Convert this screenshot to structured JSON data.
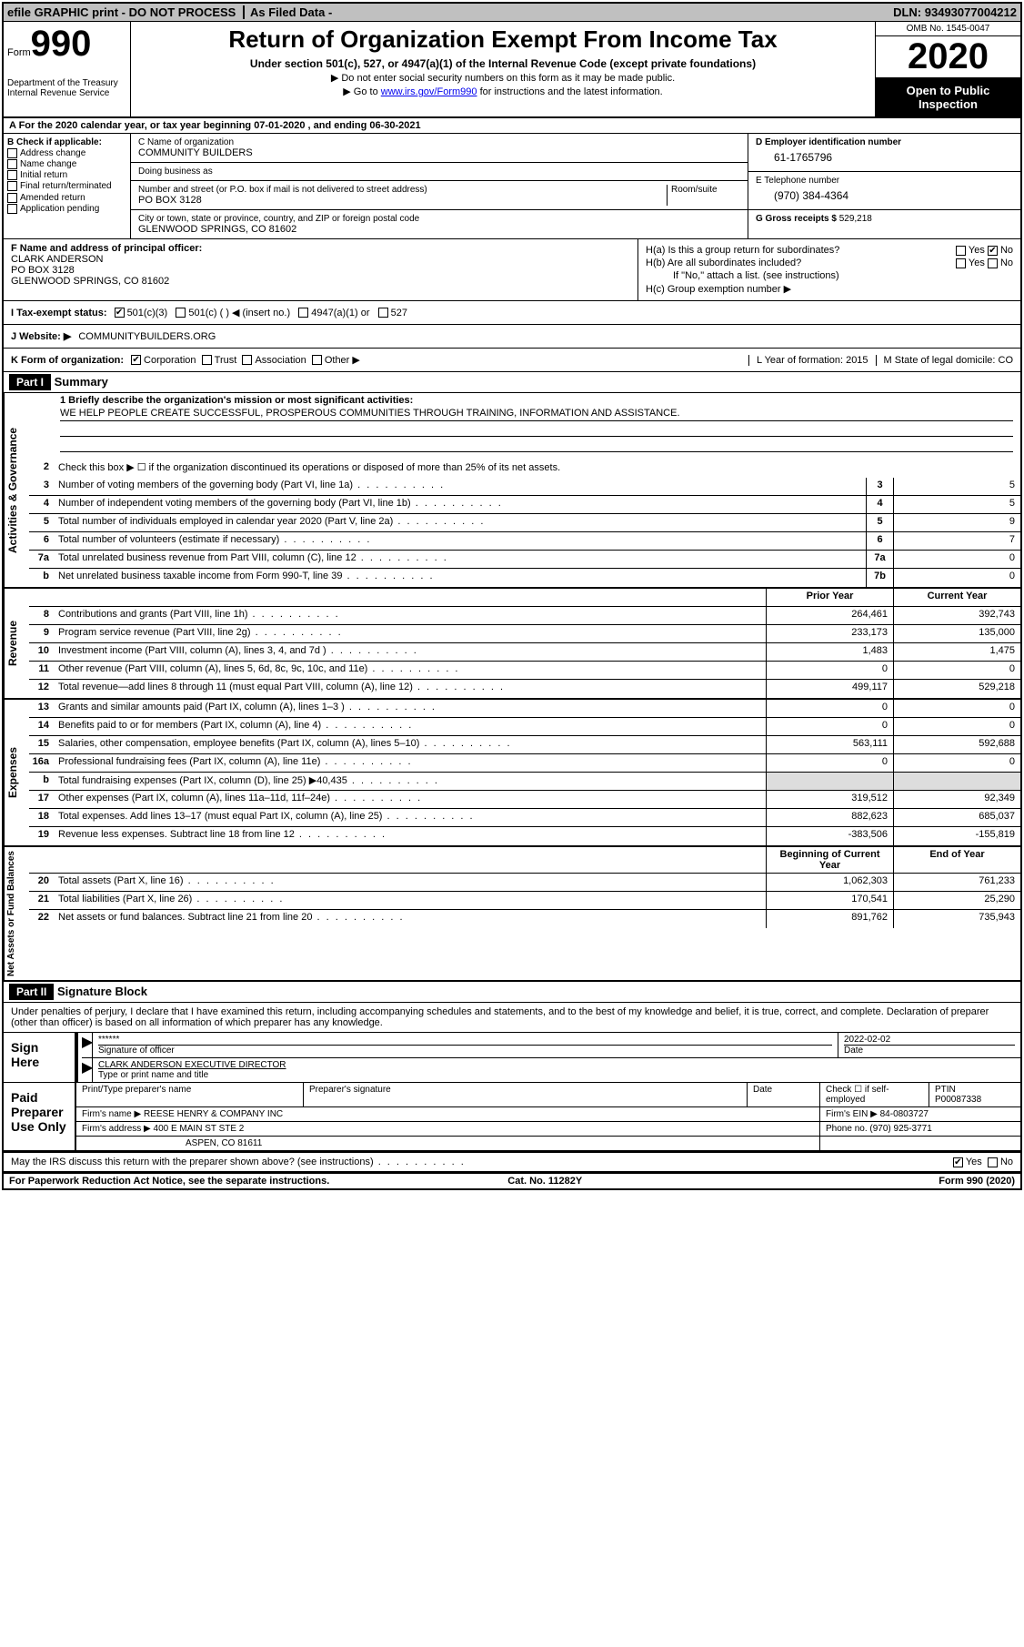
{
  "topbar": {
    "efile": "efile GRAPHIC print - DO NOT PROCESS",
    "asfiled": "As Filed Data -",
    "dln_lbl": "DLN:",
    "dln": "93493077004212"
  },
  "header": {
    "form_word": "Form",
    "form_no": "990",
    "dept": "Department of the Treasury",
    "irs": "Internal Revenue Service",
    "title": "Return of Organization Exempt From Income Tax",
    "sub": "Under section 501(c), 527, or 4947(a)(1) of the Internal Revenue Code (except private foundations)",
    "note1": "▶ Do not enter social security numbers on this form as it may be made public.",
    "note2": "▶ Go to www.irs.gov/Form990 for instructions and the latest information.",
    "omb": "OMB No. 1545-0047",
    "year": "2020",
    "inspect": "Open to Public Inspection"
  },
  "A": {
    "text": "A   For the 2020 calendar year, or tax year beginning 07-01-2020    , and ending 06-30-2021"
  },
  "B": {
    "lbl": "B Check if applicable:",
    "addr": "Address change",
    "name": "Name change",
    "init": "Initial return",
    "final": "Final return/terminated",
    "amend": "Amended return",
    "app": "Application pending"
  },
  "C": {
    "name_lbl": "C Name of organization",
    "name": "COMMUNITY BUILDERS",
    "dba_lbl": "Doing business as",
    "dba": "",
    "addr_lbl": "Number and street (or P.O. box if mail is not delivered to street address)",
    "room_lbl": "Room/suite",
    "addr": "PO BOX 3128",
    "city_lbl": "City or town, state or province, country, and ZIP or foreign postal code",
    "city": "GLENWOOD SPRINGS, CO  81602"
  },
  "D": {
    "lbl": "D Employer identification number",
    "val": "61-1765796"
  },
  "E": {
    "lbl": "E Telephone number",
    "val": "(970) 384-4364"
  },
  "G": {
    "lbl": "G Gross receipts $",
    "val": "529,218"
  },
  "F": {
    "lbl": "F   Name and address of principal officer:",
    "name": "CLARK ANDERSON",
    "addr1": "PO BOX 3128",
    "addr2": "GLENWOOD SPRINGS, CO  81602"
  },
  "H": {
    "a": "H(a)  Is this a group return for subordinates?",
    "b": "H(b)  Are all subordinates included?",
    "bnote": "If \"No,\" attach a list. (see instructions)",
    "c": "H(c)  Group exemption number ▶",
    "yes": "Yes",
    "no": "No"
  },
  "I": {
    "lbl": "I   Tax-exempt status:",
    "c3": "501(c)(3)",
    "c": "501(c) (   ) ◀ (insert no.)",
    "a1": "4947(a)(1) or",
    "s527": "527"
  },
  "J": {
    "lbl": "J   Website: ▶",
    "val": "COMMUNITYBUILDERS.ORG"
  },
  "K": {
    "lbl": "K Form of organization:",
    "corp": "Corporation",
    "trust": "Trust",
    "assoc": "Association",
    "other": "Other ▶"
  },
  "L": {
    "text": "L Year of formation: 2015"
  },
  "M": {
    "text": "M State of legal domicile: CO"
  },
  "part1": {
    "hdr": "Part I",
    "title": "Summary"
  },
  "summary": {
    "s1": "1 Briefly describe the organization's mission or most significant activities:",
    "mission": "WE HELP PEOPLE CREATE SUCCESSFUL, PROSPEROUS COMMUNITIES THROUGH TRAINING, INFORMATION AND ASSISTANCE.",
    "s2": "Check this box ▶ ☐ if the organization discontinued its operations or disposed of more than 25% of its net assets.",
    "vtab_ag": "Activities & Governance",
    "vtab_rev": "Revenue",
    "vtab_exp": "Expenses",
    "vtab_na": "Net Assets or Fund Balances",
    "lines_gov": [
      {
        "n": "3",
        "t": "Number of voting members of the governing body (Part VI, line 1a)",
        "cn": "3",
        "v": "5"
      },
      {
        "n": "4",
        "t": "Number of independent voting members of the governing body (Part VI, line 1b)",
        "cn": "4",
        "v": "5"
      },
      {
        "n": "5",
        "t": "Total number of individuals employed in calendar year 2020 (Part V, line 2a)",
        "cn": "5",
        "v": "9"
      },
      {
        "n": "6",
        "t": "Total number of volunteers (estimate if necessary)",
        "cn": "6",
        "v": "7"
      },
      {
        "n": "7a",
        "t": "Total unrelated business revenue from Part VIII, column (C), line 12",
        "cn": "7a",
        "v": "0"
      },
      {
        "n": "b",
        "t": "Net unrelated business taxable income from Form 990-T, line 39",
        "cn": "7b",
        "v": "0"
      }
    ],
    "hdr_prior": "Prior Year",
    "hdr_curr": "Current Year",
    "lines_rev": [
      {
        "n": "8",
        "t": "Contributions and grants (Part VIII, line 1h)",
        "p": "264,461",
        "c": "392,743"
      },
      {
        "n": "9",
        "t": "Program service revenue (Part VIII, line 2g)",
        "p": "233,173",
        "c": "135,000"
      },
      {
        "n": "10",
        "t": "Investment income (Part VIII, column (A), lines 3, 4, and 7d )",
        "p": "1,483",
        "c": "1,475"
      },
      {
        "n": "11",
        "t": "Other revenue (Part VIII, column (A), lines 5, 6d, 8c, 9c, 10c, and 11e)",
        "p": "0",
        "c": "0"
      },
      {
        "n": "12",
        "t": "Total revenue—add lines 8 through 11 (must equal Part VIII, column (A), line 12)",
        "p": "499,117",
        "c": "529,218"
      }
    ],
    "lines_exp": [
      {
        "n": "13",
        "t": "Grants and similar amounts paid (Part IX, column (A), lines 1–3 )",
        "p": "0",
        "c": "0"
      },
      {
        "n": "14",
        "t": "Benefits paid to or for members (Part IX, column (A), line 4)",
        "p": "0",
        "c": "0"
      },
      {
        "n": "15",
        "t": "Salaries, other compensation, employee benefits (Part IX, column (A), lines 5–10)",
        "p": "563,111",
        "c": "592,688"
      },
      {
        "n": "16a",
        "t": "Professional fundraising fees (Part IX, column (A), line 11e)",
        "p": "0",
        "c": "0"
      },
      {
        "n": "b",
        "t": "Total fundraising expenses (Part IX, column (D), line 25) ▶40,435",
        "p": "",
        "c": "",
        "gray": true
      },
      {
        "n": "17",
        "t": "Other expenses (Part IX, column (A), lines 11a–11d, 11f–24e)",
        "p": "319,512",
        "c": "92,349"
      },
      {
        "n": "18",
        "t": "Total expenses. Add lines 13–17 (must equal Part IX, column (A), line 25)",
        "p": "882,623",
        "c": "685,037"
      },
      {
        "n": "19",
        "t": "Revenue less expenses. Subtract line 18 from line 12",
        "p": "-383,506",
        "c": "-155,819"
      }
    ],
    "hdr_beg": "Beginning of Current Year",
    "hdr_end": "End of Year",
    "lines_na": [
      {
        "n": "20",
        "t": "Total assets (Part X, line 16)",
        "p": "1,062,303",
        "c": "761,233"
      },
      {
        "n": "21",
        "t": "Total liabilities (Part X, line 26)",
        "p": "170,541",
        "c": "25,290"
      },
      {
        "n": "22",
        "t": "Net assets or fund balances. Subtract line 21 from line 20",
        "p": "891,762",
        "c": "735,943"
      }
    ]
  },
  "part2": {
    "hdr": "Part II",
    "title": "Signature Block"
  },
  "sig": {
    "decl": "Under penalties of perjury, I declare that I have examined this return, including accompanying schedules and statements, and to the best of my knowledge and belief, it is true, correct, and complete. Declaration of preparer (other than officer) is based on all information of which preparer has any knowledge.",
    "sign_here": "Sign Here",
    "stars": "******",
    "sig_of": "Signature of officer",
    "date_lbl": "Date",
    "date": "2022-02-02",
    "officer": "CLARK ANDERSON  EXECUTIVE DIRECTOR",
    "type_lbl": "Type or print name and title",
    "paid": "Paid Preparer Use Only",
    "prep_name_lbl": "Print/Type preparer's name",
    "prep_sig_lbl": "Preparer's signature",
    "check_lbl": "Check ☐ if self-employed",
    "ptin_lbl": "PTIN",
    "ptin": "P00087338",
    "firm_name_lbl": "Firm's name   ▶",
    "firm_name": "REESE HENRY & COMPANY INC",
    "firm_ein_lbl": "Firm's EIN ▶",
    "firm_ein": "84-0803727",
    "firm_addr_lbl": "Firm's address ▶",
    "firm_addr1": "400 E MAIN ST STE 2",
    "firm_addr2": "ASPEN, CO  81611",
    "phone_lbl": "Phone no.",
    "phone": "(970) 925-3771",
    "discuss": "May the IRS discuss this return with the preparer shown above? (see instructions)",
    "yes": "Yes",
    "no": "No"
  },
  "footer": {
    "left": "For Paperwork Reduction Act Notice, see the separate instructions.",
    "mid": "Cat. No. 11282Y",
    "right": "Form 990 (2020)"
  }
}
